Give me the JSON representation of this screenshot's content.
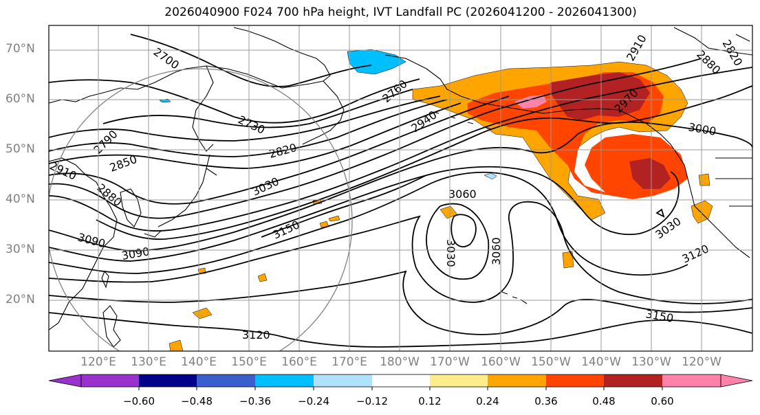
{
  "title": "2026040900 F024 700 hPa height, IVT Landfall PC (2026041200 - 2026041300)",
  "map": {
    "lat_labels": [
      "70°N",
      "60°N",
      "50°N",
      "40°N",
      "30°N",
      "20°N"
    ],
    "lon_labels": [
      "120°E",
      "130°E",
      "140°E",
      "150°E",
      "160°E",
      "170°E",
      "180°W",
      "170°W",
      "160°W",
      "150°W",
      "140°W",
      "130°W",
      "120°W"
    ],
    "contour_labels": [
      "2700",
      "2730",
      "2760",
      "2790",
      "2820",
      "2850",
      "2880",
      "2910",
      "2940",
      "2970",
      "3000",
      "3030",
      "3030",
      "3030",
      "3060",
      "3060",
      "3090",
      "3090",
      "3120",
      "3120",
      "3150",
      "3150",
      "2880",
      "2910",
      "2820"
    ],
    "grid_color": "#999999",
    "coast_color": "#000000"
  },
  "colorbar": {
    "ticks": [
      "−0.60",
      "−0.48",
      "−0.36",
      "−0.24",
      "−0.12",
      "0.12",
      "0.24",
      "0.36",
      "0.48",
      "0.60"
    ],
    "colors": [
      "#9932cc",
      "#00008b",
      "#3a5fcd",
      "#00bfff",
      "#b0e2ff",
      "#ffffff",
      "#ffec8b",
      "#ffa500",
      "#ff4500",
      "#b22222",
      "#ff82ab"
    ]
  }
}
